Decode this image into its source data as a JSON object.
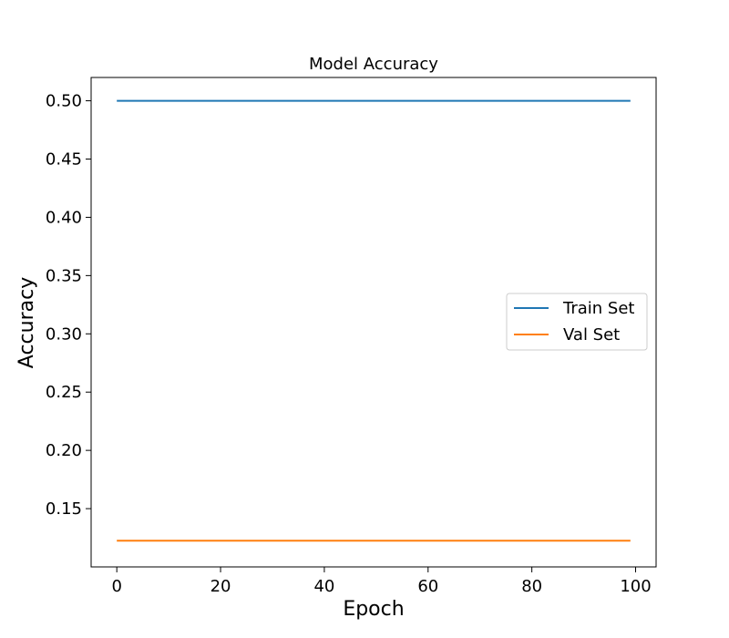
{
  "chart_data": {
    "type": "line",
    "title": "Model Accuracy",
    "xlabel": "Epoch",
    "ylabel": "Accuracy",
    "xlim": [
      -4.95,
      103.95
    ],
    "ylim": [
      0.1,
      0.52
    ],
    "x_ticks": [
      0,
      20,
      40,
      60,
      80,
      100
    ],
    "x_tick_labels": [
      "0",
      "20",
      "40",
      "60",
      "80",
      "100"
    ],
    "y_ticks": [
      0.15,
      0.2,
      0.25,
      0.3,
      0.35,
      0.4,
      0.45,
      0.5
    ],
    "y_tick_labels": [
      "0.15",
      "0.20",
      "0.25",
      "0.30",
      "0.35",
      "0.40",
      "0.45",
      "0.50"
    ],
    "grid": false,
    "legend_position": "center-right",
    "series": [
      {
        "name": "Train Set",
        "color": "#1f77b4",
        "x": [
          0,
          99
        ],
        "y": [
          0.5,
          0.5
        ]
      },
      {
        "name": "Val Set",
        "color": "#ff7f0e",
        "x": [
          0,
          99
        ],
        "y": [
          0.1225,
          0.1225
        ]
      }
    ]
  }
}
